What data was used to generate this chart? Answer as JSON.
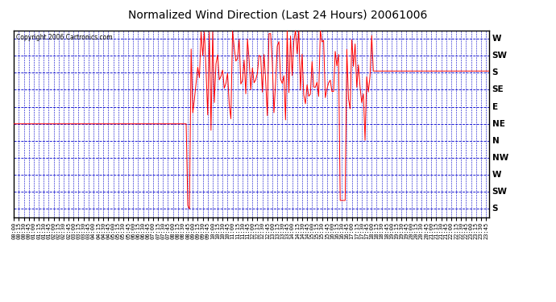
{
  "title": "Normalized Wind Direction (Last 24 Hours) 20061006",
  "copyright": "Copyright 2006 Cartronics.com",
  "background_color": "#ffffff",
  "plot_bg_color": "#ffffff",
  "grid_color": "#0000cc",
  "line_color": "#ff0000",
  "border_color": "#000000",
  "ytick_labels": [
    "W",
    "SW",
    "S",
    "SE",
    "E",
    "NE",
    "N",
    "NW",
    "W",
    "SW",
    "S"
  ],
  "ytick_values": [
    11,
    10,
    9,
    8,
    7,
    6,
    5,
    4,
    3,
    2,
    1
  ],
  "ylim": [
    0.5,
    11.5
  ],
  "seg1_end_time": "08:45",
  "seg1_value": 6.0,
  "seg3_start_time": "18:05",
  "seg3_value": 9.1,
  "figwidth": 6.9,
  "figheight": 3.75,
  "dpi": 100
}
